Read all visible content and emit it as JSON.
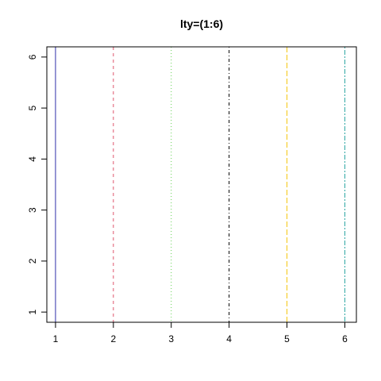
{
  "chart_data": {
    "type": "line",
    "title": "lty=(1:6)",
    "xlabel": "",
    "ylabel": "",
    "xlim": [
      0.85,
      6.2
    ],
    "ylim": [
      0.8,
      6.2
    ],
    "grid": false,
    "x_ticks": [
      1,
      2,
      3,
      4,
      5,
      6
    ],
    "y_ticks": [
      1,
      2,
      3,
      4,
      5,
      6
    ],
    "series": [
      {
        "x": 1,
        "lty": 1,
        "line_style": "solid",
        "color": "#2E2EA8"
      },
      {
        "x": 2,
        "lty": 2,
        "line_style": "dashed",
        "color": "#DF536B"
      },
      {
        "x": 3,
        "lty": 3,
        "line_style": "dotted",
        "color": "#61D04F"
      },
      {
        "x": 4,
        "lty": 4,
        "line_style": "dotdash",
        "color": "#000000"
      },
      {
        "x": 5,
        "lty": 5,
        "line_style": "longdash",
        "color": "#F5C710"
      },
      {
        "x": 6,
        "lty": 6,
        "line_style": "twodash",
        "color": "#28A4A0"
      }
    ]
  }
}
